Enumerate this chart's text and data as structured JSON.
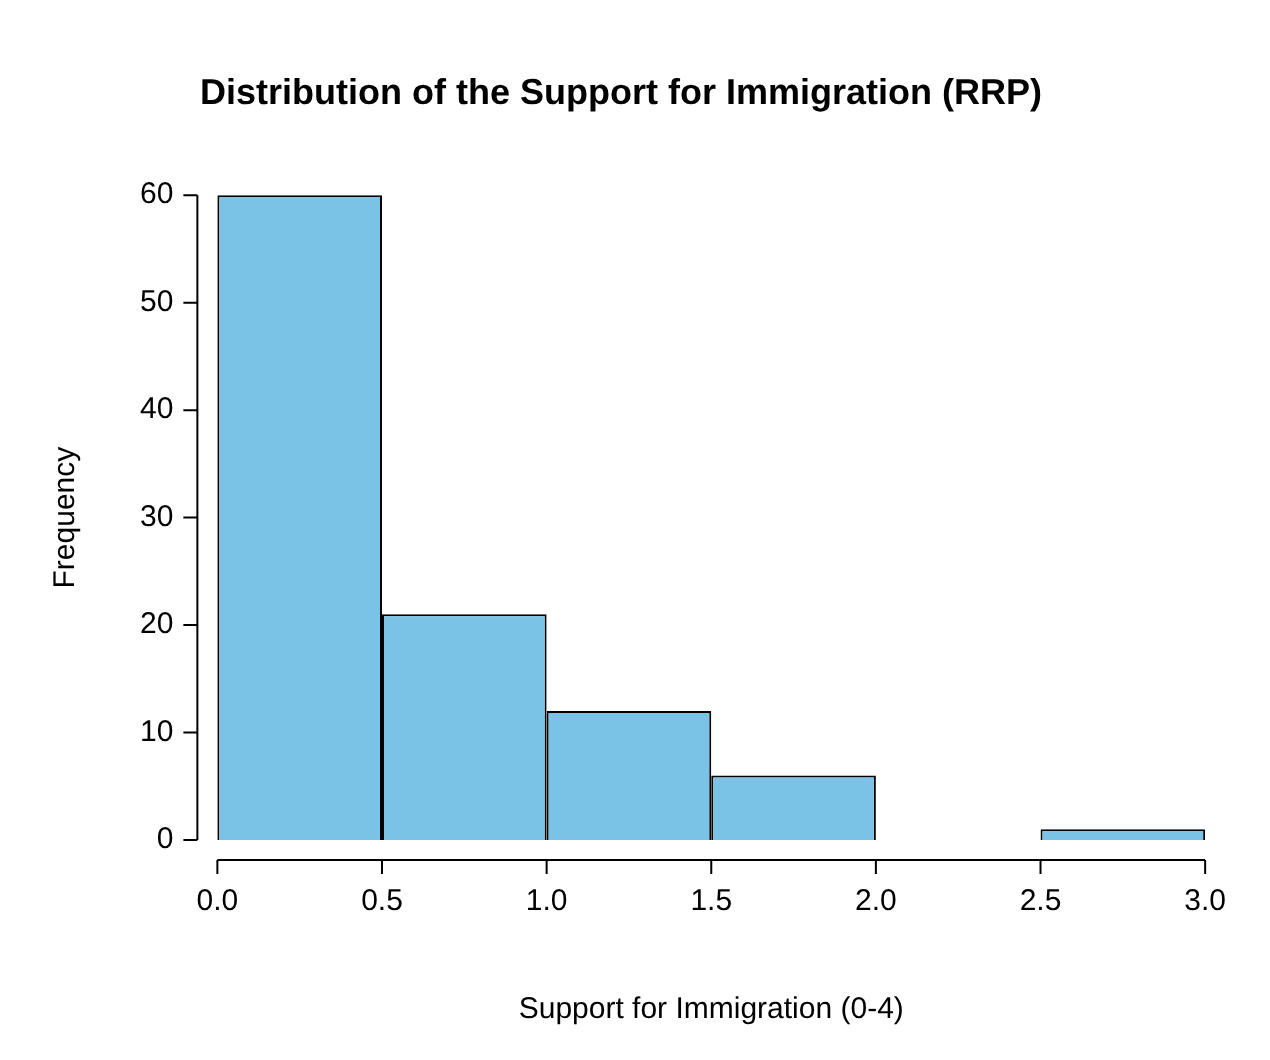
{
  "chart_data": {
    "type": "histogram",
    "title": "Distribution of the Support for Immigration (RRP)",
    "xlabel": "Support for Immigration (0-4)",
    "ylabel": "Frequency",
    "bins": [
      0,
      0.5,
      1,
      1.5,
      2,
      2.5,
      3
    ],
    "values": [
      60,
      21,
      12,
      6,
      0,
      1
    ],
    "color": "#7ac3e6",
    "xlim": [
      0,
      3
    ],
    "xticks": [
      {
        "value": 0,
        "label": "0.0"
      },
      {
        "value": 0.5,
        "label": "0.5"
      },
      {
        "value": 1,
        "label": "1.0"
      },
      {
        "value": 1.5,
        "label": "1.5"
      },
      {
        "value": 2,
        "label": "2.0"
      },
      {
        "value": 2.5,
        "label": "2.5"
      },
      {
        "value": 3,
        "label": "3.0"
      }
    ],
    "ylim": [
      0,
      60
    ],
    "yticks": [
      0,
      10,
      20,
      30,
      40,
      50,
      60
    ],
    "grid": false,
    "legend": false
  }
}
